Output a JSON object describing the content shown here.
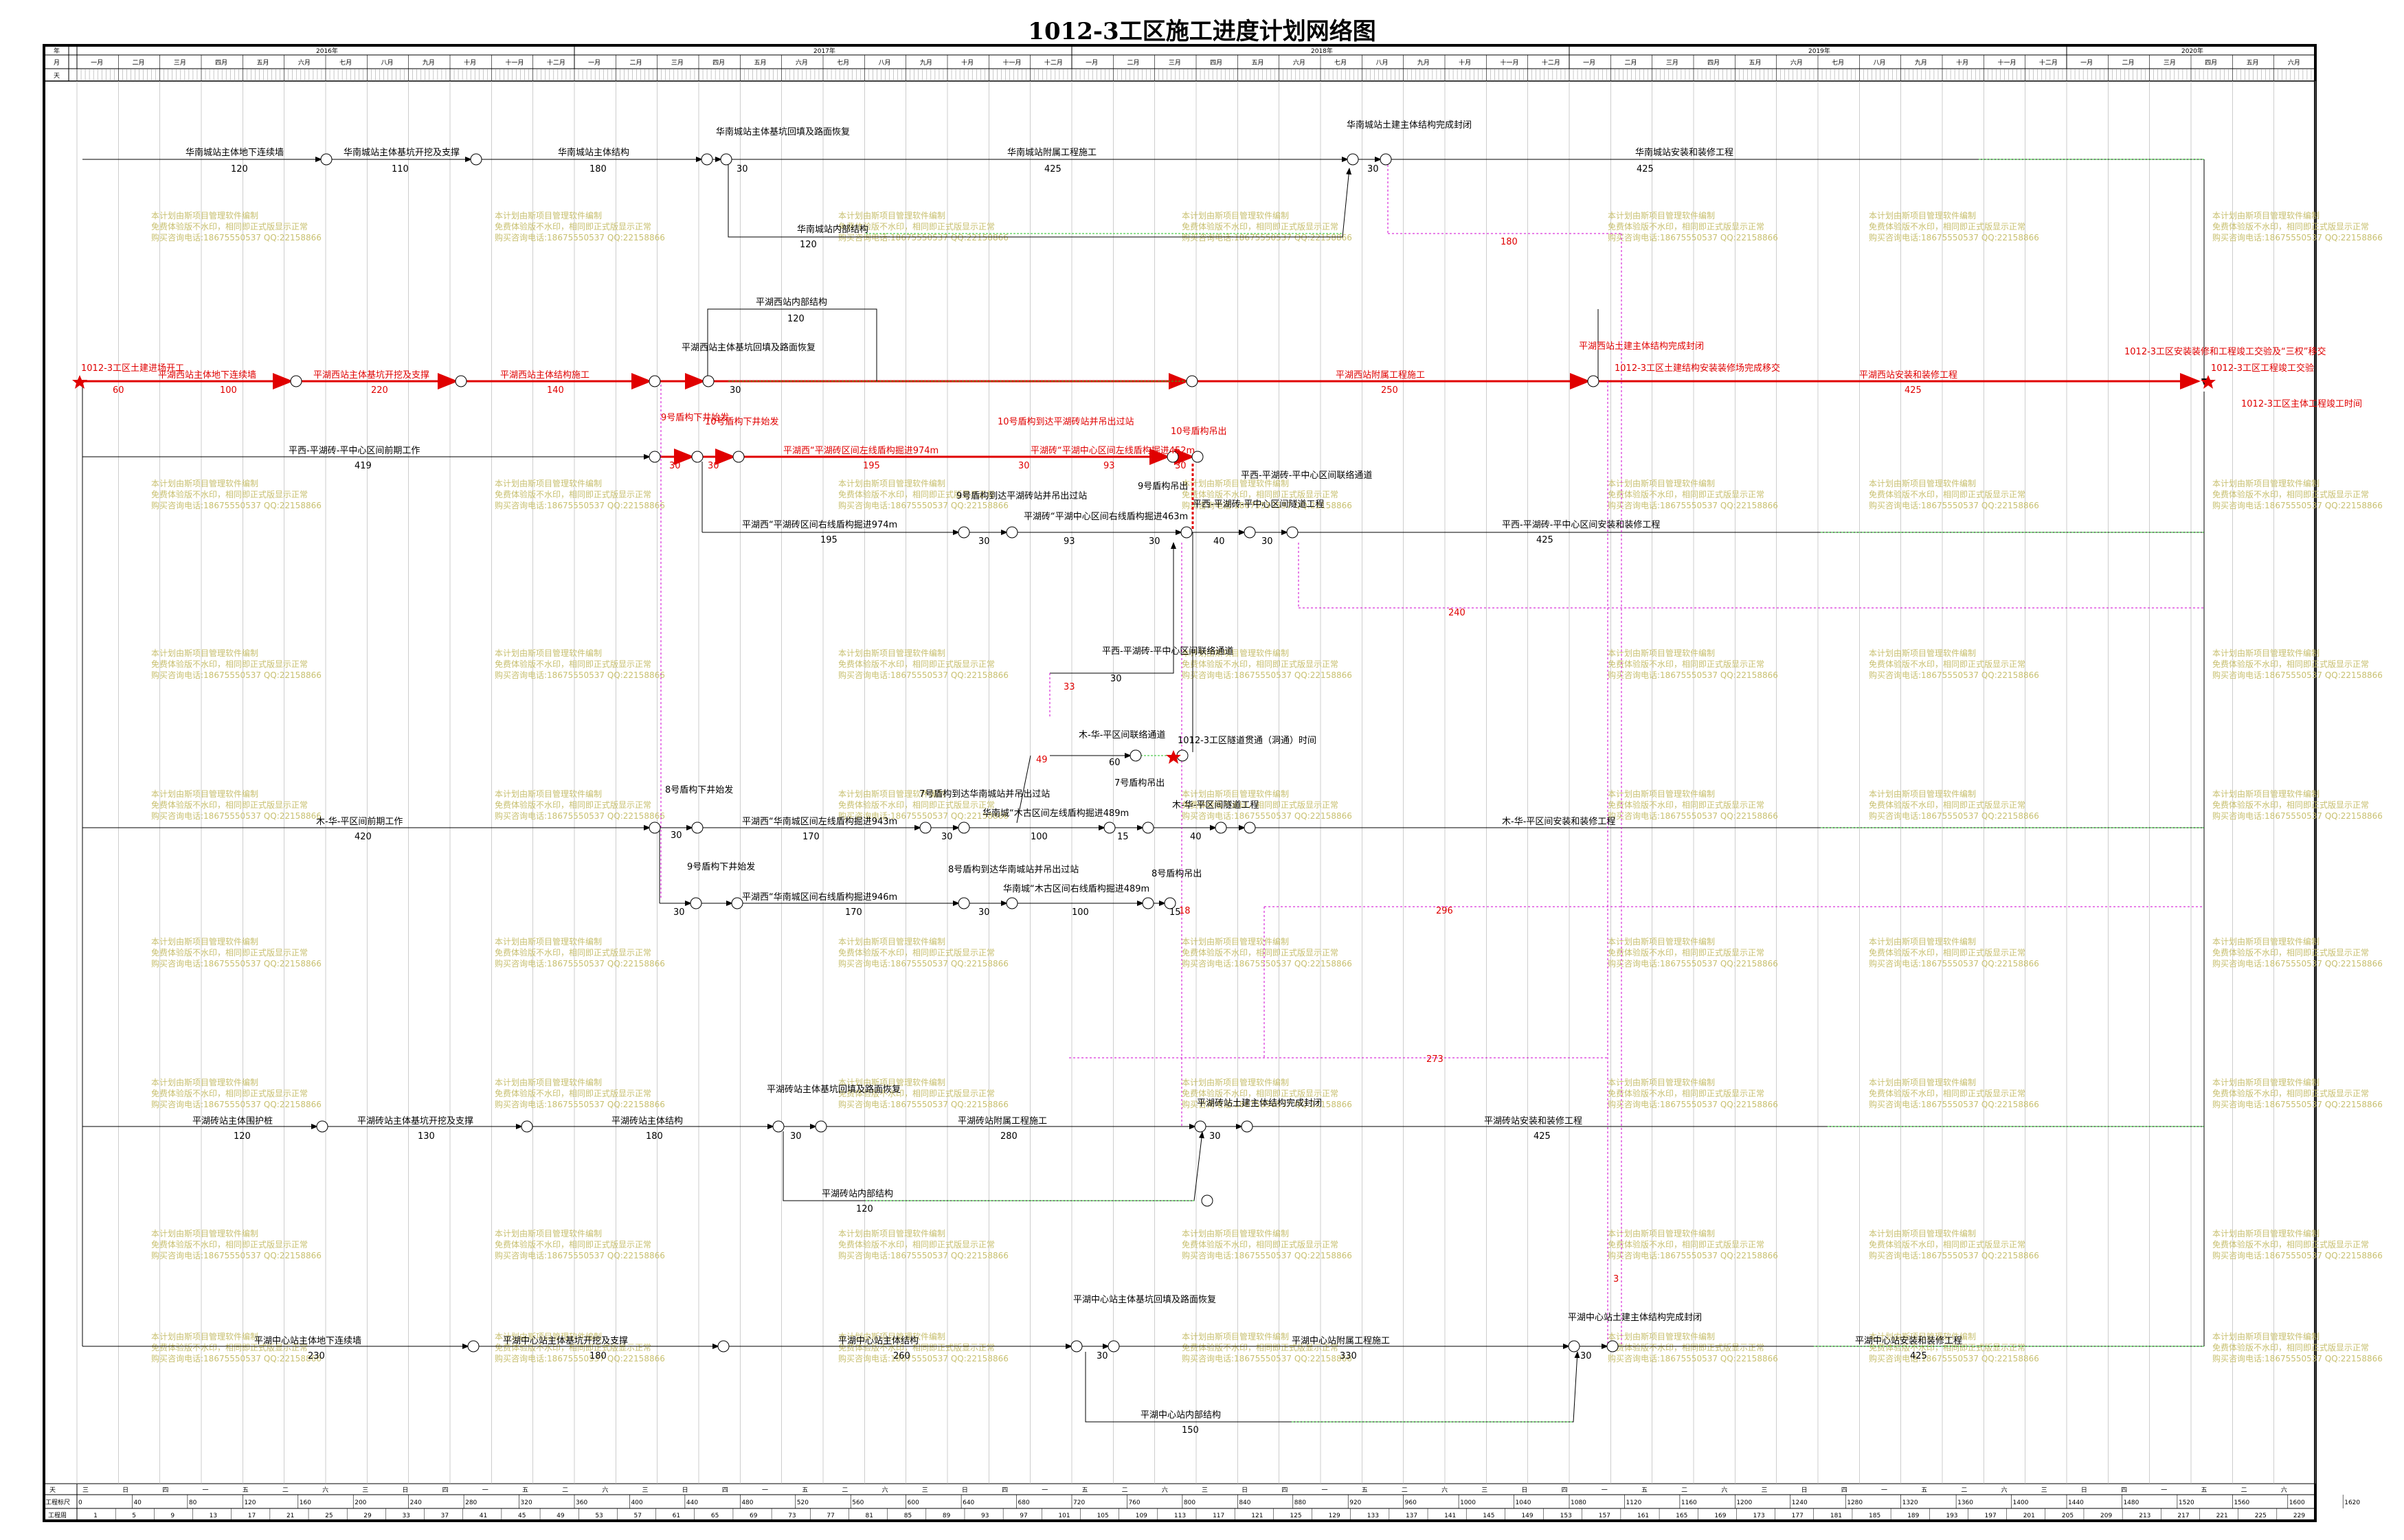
{
  "title": "1012-3工区施工进度计划网络图",
  "header": {
    "row_labels": [
      "年",
      "月",
      "天"
    ],
    "years": [
      "2016年",
      "2017年",
      "2018年",
      "2019年",
      "2020年"
    ],
    "months": [
      "一月",
      "二月",
      "三月",
      "四月",
      "五月",
      "六月",
      "七月",
      "八月",
      "九月",
      "十月",
      "十一月",
      "十二月"
    ]
  },
  "footer": {
    "row_labels": [
      "天",
      "工程标尺",
      "工程周"
    ],
    "weekdays": [
      "三",
      "日",
      "四",
      "一",
      "五",
      "二",
      "六",
      "三",
      "日",
      "四",
      "一",
      "五",
      "二",
      "六"
    ],
    "scale": [
      "0",
      "40",
      "80",
      "120",
      "160",
      "200",
      "240",
      "280",
      "320",
      "360",
      "400",
      "440",
      "480",
      "520",
      "560",
      "600",
      "640",
      "680",
      "720",
      "760",
      "800",
      "840",
      "880",
      "920",
      "960",
      "1000",
      "1040",
      "1080",
      "1120",
      "1160",
      "1200",
      "1240",
      "1280",
      "1320",
      "1360",
      "1400",
      "1440",
      "1480",
      "1520",
      "1560",
      "1600",
      "1620"
    ],
    "weeks": [
      "1",
      "5",
      "9",
      "13",
      "17",
      "21",
      "25",
      "29",
      "33",
      "37",
      "41",
      "45",
      "49",
      "53",
      "57",
      "61",
      "65",
      "69",
      "73",
      "77",
      "81",
      "85",
      "89",
      "93",
      "97",
      "101",
      "105",
      "109",
      "113",
      "117",
      "121",
      "125",
      "129",
      "133",
      "137",
      "141",
      "145",
      "149",
      "153",
      "157",
      "161",
      "165",
      "169",
      "173",
      "177",
      "181",
      "185",
      "189",
      "193",
      "197",
      "201",
      "205",
      "209",
      "213",
      "217",
      "221",
      "225",
      "229"
    ]
  },
  "watermark": [
    "本计划由斯项目管理软件编制",
    "免费体验版不水印，相同即正式版显示正常",
    "购买咨询电话:18675550537 QQ:22158866"
  ],
  "tasks": [
    {
      "label": "华南城站主体地下连续墙",
      "dur": "120"
    },
    {
      "label": "华南城站主体基坑开挖及支撑",
      "dur": "110"
    },
    {
      "label": "华南城站主体结构",
      "dur": "180"
    },
    {
      "label": "华南城站主体基坑回填及路面恢复",
      "dur": "30"
    },
    {
      "label": "华南城站附属工程施工",
      "dur": "425"
    },
    {
      "label": "华南城站土建主体结构完成封闭",
      "dur": "30"
    },
    {
      "label": "华南城站安装和装修工程",
      "dur": "425"
    },
    {
      "label": "华南城站内部结构",
      "dur": "120"
    },
    {
      "label": "平湖西站内部结构",
      "dur": "120"
    },
    {
      "label": "1012-3工区土建进场开工",
      "dur": "60"
    },
    {
      "label": "平湖西站主体地下连续墙",
      "dur": "100"
    },
    {
      "label": "平湖西站主体基坑开挖及支撑",
      "dur": "220"
    },
    {
      "label": "平湖西站主体结构施工",
      "dur": "140"
    },
    {
      "label": "平湖西站主体结构施工",
      "dur": "30"
    },
    {
      "label": "平湖西站主体基坑回填及路面恢复",
      "dur": "30"
    },
    {
      "label": "平湖西站附属工程施工",
      "dur": "250"
    },
    {
      "label": "平湖西站土建主体结构完成封闭",
      "dur": "30"
    },
    {
      "label": "1012-3工区土建结构安装装修场完成移交",
      "dur": ""
    },
    {
      "label": "平湖西站安装和装修工程",
      "dur": "425"
    },
    {
      "label": "1012-3工区安装装修和工程竣工交验及“三权”移交",
      "dur": ""
    },
    {
      "label": "1012-3工区工程竣工交验",
      "dur": ""
    },
    {
      "label": "1012-3工区主体工程竣工时间",
      "dur": ""
    },
    {
      "label": "平西-平湖砖-平中心区间前期工作",
      "dur": "419"
    },
    {
      "label": "9号盾构下井始发",
      "dur": "30"
    },
    {
      "label": "10号盾构下井始发",
      "dur": "30"
    },
    {
      "label": "平湖西“平湖砖区间左线盾构掘进974m",
      "dur": "195"
    },
    {
      "label": "10号盾构到达平湖砖站并吊出过站",
      "dur": "30"
    },
    {
      "label": "平湖砖“平湖中心区间左线盾构掘进452m",
      "dur": "93"
    },
    {
      "label": "10号盾构吊出",
      "dur": "30"
    },
    {
      "label": "平湖西“平湖砖区间右线盾构掘进974m",
      "dur": "195"
    },
    {
      "label": "9号盾构到达平湖砖站并吊出过站",
      "dur": "30"
    },
    {
      "label": "平湖砖“平湖中心区间右线盾构掘进463m",
      "dur": "93"
    },
    {
      "label": "9号盾构吊出",
      "dur": "30"
    },
    {
      "label": "平西-平湖砖-平中心区间隧道工程",
      "dur": "40"
    },
    {
      "label": "平西-平湖砖-平中心区间联络通道",
      "dur": "30"
    },
    {
      "label": "平西-平湖砖-平中心区间安装和装修工程",
      "dur": "425"
    },
    {
      "label": "平西-平湖砖-平中心区间联络通道",
      "dur": "30"
    },
    {
      "label": "木-华-平区间联络通道",
      "dur": "60"
    },
    {
      "label": "1012-3工区隧道贯通（洞通）时间",
      "dur": ""
    },
    {
      "label": "木-华-平区间前期工作",
      "dur": "420"
    },
    {
      "label": "8号盾构下井始发",
      "dur": "30"
    },
    {
      "label": "平湖西“华南城区间左线盾构掘进943m",
      "dur": "170"
    },
    {
      "label": "7号盾构到达华南城站并吊出过站",
      "dur": "30"
    },
    {
      "label": "华南城“木古区间左线盾构掘进489m",
      "dur": "100"
    },
    {
      "label": "7号盾构吊出",
      "dur": "15"
    },
    {
      "label": "木-华-平区间隧道工程",
      "dur": "40"
    },
    {
      "label": "木-华-平区间安装和装修工程",
      "dur": ""
    },
    {
      "label": "9号盾构下井始发",
      "dur": "30"
    },
    {
      "label": "平湖西“华南城区间右线盾构掘进946m",
      "dur": "170"
    },
    {
      "label": "8号盾构到达华南城站并吊出过站",
      "dur": "30"
    },
    {
      "label": "华南城“木古区间右线盾构掘进489m",
      "dur": "100"
    },
    {
      "label": "8号盾构吊出",
      "dur": "15"
    },
    {
      "label": "平湖砖站主体围护桩",
      "dur": "120"
    },
    {
      "label": "平湖砖站主体基坑开挖及支撑",
      "dur": "130"
    },
    {
      "label": "平湖砖站主体结构",
      "dur": "180"
    },
    {
      "label": "平湖砖站主体基坑回填及路面恢复",
      "dur": "30"
    },
    {
      "label": "平湖砖站附属工程施工",
      "dur": "280"
    },
    {
      "label": "平湖砖站土建主体结构完成封闭",
      "dur": "30"
    },
    {
      "label": "平湖砖站安装和装修工程",
      "dur": "425"
    },
    {
      "label": "平湖砖站内部结构",
      "dur": "120"
    },
    {
      "label": "平湖中心站主体地下连续墙",
      "dur": "230"
    },
    {
      "label": "平湖中心站主体基坑开挖及支撑",
      "dur": "180"
    },
    {
      "label": "平湖中心站主体结构",
      "dur": "260"
    },
    {
      "label": "平湖中心站主体基坑回填及路面恢复",
      "dur": "30"
    },
    {
      "label": "平湖中心站附属工程施工",
      "dur": "330"
    },
    {
      "label": "平湖中心站土建主体结构完成封闭",
      "dur": "30"
    },
    {
      "label": "平湖中心站安装和装修工程",
      "dur": "425"
    },
    {
      "label": "平湖中心站内部结构",
      "dur": "150"
    }
  ],
  "floats": [
    "180",
    "240",
    "296",
    "273",
    "33",
    "49",
    "18",
    "3"
  ],
  "colors": {
    "critical": "#e00000",
    "free_float": "#d000d0",
    "green": "#22c022",
    "watermark": "#c8c070"
  }
}
